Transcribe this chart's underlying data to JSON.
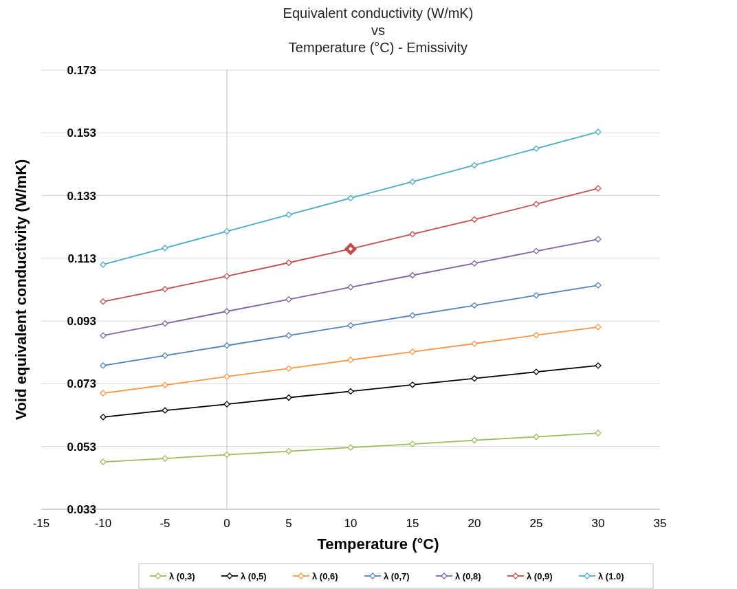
{
  "chart_data": {
    "type": "line",
    "title": "Equivalent conductivity  (W/mK)\nvs\nTemperature (°C) - Emissivity",
    "xlabel": "Temperature (°C)",
    "ylabel": "Void equivalent conductivity (W/mK)",
    "x": [
      -10,
      -5,
      0,
      5,
      10,
      15,
      20,
      25,
      30
    ],
    "series": [
      {
        "name": "λ (0,3)",
        "color": "#9bbb59",
        "values": [
          0.0481,
          0.0492,
          0.0504,
          0.0515,
          0.0527,
          0.0538,
          0.055,
          0.0561,
          0.0573
        ]
      },
      {
        "name": "λ (0,5)",
        "color": "#000000",
        "values": [
          0.0624,
          0.0645,
          0.0665,
          0.0686,
          0.0706,
          0.0727,
          0.0747,
          0.0768,
          0.0788
        ]
      },
      {
        "name": "λ (0,6)",
        "color": "#f79646",
        "values": [
          0.07,
          0.0726,
          0.0753,
          0.0779,
          0.0806,
          0.0832,
          0.0858,
          0.0885,
          0.0911
        ]
      },
      {
        "name": "λ (0,7)",
        "color": "#4f81bd",
        "values": [
          0.0788,
          0.082,
          0.0852,
          0.0884,
          0.0916,
          0.0948,
          0.098,
          0.1012,
          0.1044
        ]
      },
      {
        "name": "λ (0,8)",
        "color": "#8064a2",
        "values": [
          0.0884,
          0.0922,
          0.0961,
          0.0999,
          0.1038,
          0.1076,
          0.1114,
          0.1153,
          0.1191
        ]
      },
      {
        "name": "λ (0,9)",
        "color": "#c0504d",
        "values": [
          0.0992,
          0.1032,
          0.1073,
          0.1116,
          0.116,
          0.1207,
          0.1254,
          0.1303,
          0.1353
        ]
      },
      {
        "name": "λ (1.0)",
        "color": "#4bacc6",
        "values": [
          0.111,
          0.1163,
          0.1216,
          0.1269,
          0.1322,
          0.1374,
          0.1427,
          0.148,
          0.1533
        ]
      },
      {
        "type": "scatter",
        "color": "#c0504d",
        "x": [
          10
        ],
        "values": [
          0.116
        ]
      }
    ],
    "xlim": [
      -15,
      35
    ],
    "xticks": [
      -15,
      -10,
      -5,
      0,
      5,
      10,
      15,
      20,
      25,
      30,
      35
    ],
    "ylim": [
      0.033,
      0.173
    ],
    "yticks": [
      0.033,
      0.053,
      0.073,
      0.093,
      0.113,
      0.133,
      0.153,
      0.173
    ],
    "grid": "y",
    "legend": "bottom",
    "marker": "diamond",
    "line_style": "solid"
  }
}
